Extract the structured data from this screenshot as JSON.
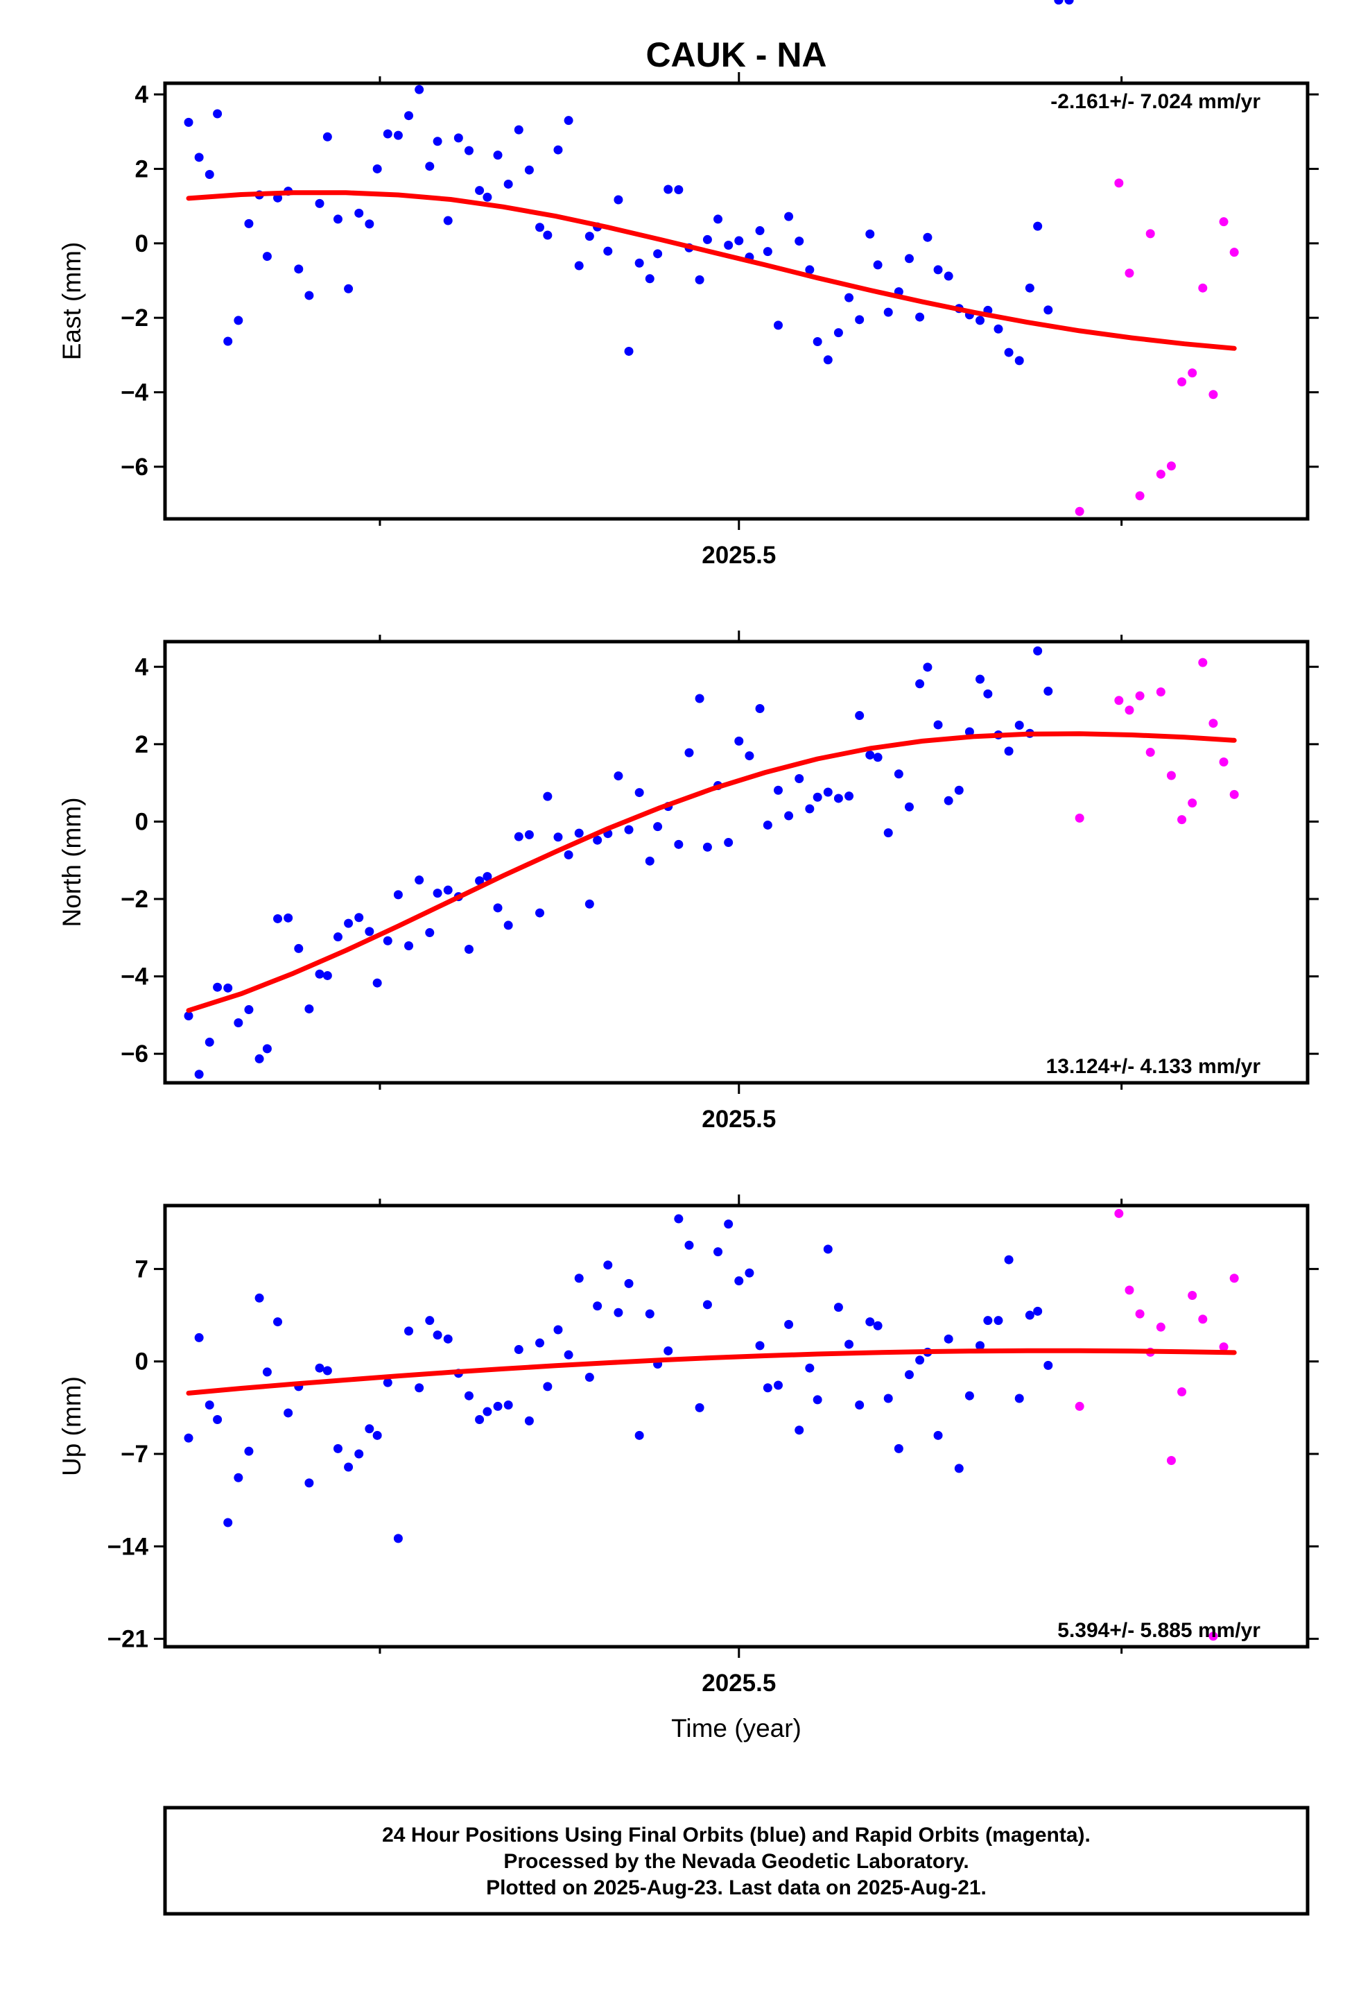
{
  "title": "CAUK - NA",
  "x_axis_label": "Time (year)",
  "footer": {
    "line1": "24 Hour Positions Using Final Orbits (blue) and Rapid Orbits (magenta).",
    "line2": "Processed by the Nevada Geodetic Laboratory.",
    "line3": "Plotted on 2025-Aug-23. Last data on 2025-Aug-21."
  },
  "colors": {
    "final": "#0000ff",
    "rapid": "#ff00ff",
    "fit": "#ff0000",
    "frame": "#000000"
  },
  "chart_data": [
    {
      "type": "scatter",
      "component": "east",
      "ylabel": "East (mm)",
      "rate_label": "-2.161+/- 7.024 mm/yr",
      "rate_position": "top-right",
      "xlim": [
        2025.281,
        2025.717
      ],
      "ylim": [
        -7.4,
        4.3
      ],
      "yticks": [
        -6,
        -4,
        -2,
        0,
        2,
        4
      ],
      "xticks": [
        2025.5
      ],
      "xticks_minor": [
        2025.363,
        2025.646
      ],
      "xtick_labels": [
        "2025.5"
      ],
      "grid": false,
      "final_x": [
        2025.29,
        2025.294,
        2025.298,
        2025.301,
        2025.305,
        2025.309,
        2025.313,
        2025.317,
        2025.32,
        2025.324,
        2025.328,
        2025.332,
        2025.336,
        2025.34,
        2025.343,
        2025.347,
        2025.351,
        2025.355,
        2025.359,
        2025.362,
        2025.366,
        2025.37,
        2025.374,
        2025.378,
        2025.382,
        2025.385,
        2025.389,
        2025.393,
        2025.397,
        2025.401,
        2025.404,
        2025.408,
        2025.412,
        2025.416,
        2025.42,
        2025.424,
        2025.427,
        2025.431,
        2025.435,
        2025.439,
        2025.443,
        2025.446,
        2025.45,
        2025.454,
        2025.458,
        2025.462,
        2025.466,
        2025.469,
        2025.473,
        2025.477,
        2025.481,
        2025.485,
        2025.488,
        2025.492,
        2025.496,
        2025.5,
        2025.504,
        2025.508,
        2025.511,
        2025.515,
        2025.519,
        2025.523,
        2025.527,
        2025.53,
        2025.534,
        2025.538,
        2025.542,
        2025.546,
        2025.55,
        2025.553,
        2025.557,
        2025.561,
        2025.565,
        2025.569,
        2025.572,
        2025.576,
        2025.58,
        2025.584,
        2025.588,
        2025.592,
        2025.595,
        2025.599,
        2025.603,
        2025.607,
        2025.611,
        2025.614,
        2025.618,
        2025.622,
        2025.626
      ],
      "final_y": [
        3.25,
        2.31,
        1.85,
        3.48,
        -2.63,
        -2.07,
        0.53,
        1.3,
        -0.35,
        1.22,
        1.4,
        -0.69,
        -1.4,
        1.07,
        2.86,
        0.65,
        -1.22,
        0.81,
        0.52,
        2.0,
        2.94,
        2.9,
        3.43,
        4.13,
        2.07,
        2.74,
        0.61,
        2.83,
        2.49,
        1.42,
        1.24,
        2.37,
        1.59,
        3.05,
        1.97,
        0.43,
        0.22,
        2.51,
        3.3,
        -0.6,
        0.19,
        0.44,
        -0.21,
        1.17,
        -2.9,
        -0.53,
        -0.95,
        -0.28,
        1.45,
        1.44,
        -0.12,
        -0.98,
        0.1,
        0.65,
        -0.05,
        0.07,
        -0.37,
        0.34,
        -0.22,
        -2.2,
        0.72,
        0.06,
        -0.71,
        -2.64,
        -3.13,
        -2.4,
        -1.46,
        -2.05,
        0.25,
        -0.58,
        -1.85,
        -1.3,
        -0.41,
        -1.98,
        0.16,
        -0.71,
        -0.88,
        -1.75,
        -1.92,
        -2.07,
        -1.8,
        -2.3,
        -2.93,
        -3.15,
        -1.2,
        0.46,
        -1.79
      ],
      "rapid_x": [
        2025.63,
        2025.645,
        2025.649,
        2025.653,
        2025.657,
        2025.661,
        2025.665,
        2025.669,
        2025.673,
        2025.677,
        2025.681,
        2025.685
      ],
      "rapid_y": [
        -7.2,
        1.62,
        -0.8,
        -6.78,
        0.26,
        -6.2,
        -5.98,
        -3.72,
        -3.48,
        -1.2,
        -4.06,
        0.58
      ],
      "rapid_extra": {
        "x": 2025.689,
        "y": -0.24
      },
      "fit_x": [
        2025.29,
        2025.31,
        2025.33,
        2025.35,
        2025.37,
        2025.39,
        2025.41,
        2025.43,
        2025.45,
        2025.47,
        2025.49,
        2025.51,
        2025.53,
        2025.55,
        2025.57,
        2025.59,
        2025.61,
        2025.63,
        2025.65,
        2025.67,
        2025.689
      ],
      "fit_y": [
        1.21,
        1.31,
        1.36,
        1.36,
        1.3,
        1.18,
        0.98,
        0.73,
        0.43,
        0.1,
        -0.24,
        -0.58,
        -0.93,
        -1.26,
        -1.57,
        -1.86,
        -2.12,
        -2.35,
        -2.54,
        -2.7,
        -2.82
      ]
    },
    {
      "type": "scatter",
      "component": "north",
      "ylabel": "North (mm)",
      "rate_label": "13.124+/- 4.133 mm/yr",
      "rate_position": "bottom-right",
      "xlim": [
        2025.281,
        2025.717
      ],
      "ylim": [
        -6.75,
        4.65
      ],
      "yticks": [
        -6,
        -4,
        -2,
        0,
        2,
        4
      ],
      "xticks": [
        2025.5
      ],
      "xticks_minor": [
        2025.363,
        2025.646
      ],
      "xtick_labels": [
        "2025.5"
      ],
      "grid": false,
      "final_x": [
        2025.29,
        2025.294,
        2025.298,
        2025.301,
        2025.305,
        2025.309,
        2025.313,
        2025.317,
        2025.32,
        2025.324,
        2025.328,
        2025.332,
        2025.336,
        2025.34,
        2025.343,
        2025.347,
        2025.351,
        2025.355,
        2025.359,
        2025.362,
        2025.366,
        2025.37,
        2025.374,
        2025.378,
        2025.382,
        2025.385,
        2025.389,
        2025.393,
        2025.397,
        2025.401,
        2025.404,
        2025.408,
        2025.412,
        2025.416,
        2025.42,
        2025.424,
        2025.427,
        2025.431,
        2025.435,
        2025.439,
        2025.443,
        2025.446,
        2025.45,
        2025.454,
        2025.458,
        2025.462,
        2025.466,
        2025.469,
        2025.473,
        2025.477,
        2025.481,
        2025.485,
        2025.488,
        2025.492,
        2025.496,
        2025.5,
        2025.504,
        2025.508,
        2025.511,
        2025.515,
        2025.519,
        2025.523,
        2025.527,
        2025.53,
        2025.534,
        2025.538,
        2025.542,
        2025.546,
        2025.55,
        2025.553,
        2025.557,
        2025.561,
        2025.565,
        2025.569,
        2025.572,
        2025.576,
        2025.58,
        2025.584,
        2025.588,
        2025.592,
        2025.595,
        2025.599,
        2025.603,
        2025.607,
        2025.611,
        2025.614,
        2025.618,
        2025.622,
        2025.626
      ],
      "final_y": [
        -5.02,
        -6.53,
        -5.7,
        -4.28,
        -4.3,
        -5.2,
        -4.86,
        -6.13,
        -5.87,
        -2.51,
        -2.49,
        -3.28,
        -4.84,
        -3.94,
        -3.98,
        -2.98,
        -2.63,
        -2.48,
        -2.84,
        -4.17,
        -3.08,
        -1.89,
        -3.21,
        -1.51,
        -2.87,
        -1.85,
        -1.77,
        -1.94,
        -3.3,
        -1.53,
        -1.42,
        -2.23,
        -2.68,
        -0.39,
        -0.34,
        -2.36,
        0.65,
        -0.4,
        -0.86,
        -0.3,
        -2.13,
        -0.48,
        -0.31,
        1.18,
        -0.21,
        0.75,
        -1.02,
        -0.13,
        0.39,
        -0.59,
        1.78,
        3.18,
        -0.66,
        0.93,
        -0.54,
        2.08,
        1.7,
        2.92,
        -0.09,
        0.81,
        0.15,
        1.11,
        0.33,
        0.63,
        0.76,
        0.6,
        0.66,
        2.74,
        1.72,
        1.66,
        -0.29,
        1.23,
        0.38,
        3.56,
        3.99,
        2.5,
        0.54,
        0.81,
        2.32,
        3.68,
        3.3,
        2.24,
        1.82,
        2.49,
        2.28,
        4.41,
        3.37
      ],
      "rapid_x": [
        2025.63,
        2025.645,
        2025.649,
        2025.653,
        2025.657,
        2025.661,
        2025.665,
        2025.669,
        2025.673,
        2025.677,
        2025.681,
        2025.685
      ],
      "rapid_y": [
        0.09,
        3.13,
        2.88,
        3.25,
        1.79,
        3.35,
        1.19,
        0.05,
        0.48,
        4.11,
        2.54,
        1.54
      ],
      "rapid_extra": {
        "x": 2025.689,
        "y": 0.7
      },
      "fit_x": [
        2025.29,
        2025.31,
        2025.33,
        2025.35,
        2025.37,
        2025.39,
        2025.41,
        2025.43,
        2025.45,
        2025.47,
        2025.49,
        2025.51,
        2025.53,
        2025.55,
        2025.57,
        2025.59,
        2025.61,
        2025.63,
        2025.65,
        2025.67,
        2025.689
      ],
      "fit_y": [
        -4.88,
        -4.45,
        -3.92,
        -3.33,
        -2.7,
        -2.05,
        -1.4,
        -0.78,
        -0.18,
        0.36,
        0.85,
        1.27,
        1.62,
        1.89,
        2.08,
        2.2,
        2.26,
        2.27,
        2.24,
        2.18,
        2.1
      ]
    },
    {
      "type": "scatter",
      "component": "up",
      "ylabel": "Up (mm)",
      "rate_label": "5.394+/- 5.885 mm/yr",
      "rate_position": "bottom-right",
      "xlim": [
        2025.281,
        2025.717
      ],
      "ylim": [
        -21.6,
        11.8
      ],
      "yticks": [
        -21,
        -14,
        -7,
        0,
        7
      ],
      "xticks": [
        2025.5
      ],
      "xticks_minor": [
        2025.363,
        2025.646
      ],
      "xtick_labels": [
        "2025.5"
      ],
      "grid": false,
      "final_x": [
        2025.29,
        2025.294,
        2025.298,
        2025.301,
        2025.305,
        2025.309,
        2025.313,
        2025.317,
        2025.32,
        2025.324,
        2025.328,
        2025.332,
        2025.336,
        2025.34,
        2025.343,
        2025.347,
        2025.351,
        2025.355,
        2025.359,
        2025.362,
        2025.366,
        2025.37,
        2025.374,
        2025.378,
        2025.382,
        2025.385,
        2025.389,
        2025.393,
        2025.397,
        2025.401,
        2025.404,
        2025.408,
        2025.412,
        2025.416,
        2025.42,
        2025.424,
        2025.427,
        2025.431,
        2025.435,
        2025.439,
        2025.443,
        2025.446,
        2025.45,
        2025.454,
        2025.458,
        2025.462,
        2025.466,
        2025.469,
        2025.473,
        2025.477,
        2025.481,
        2025.485,
        2025.488,
        2025.492,
        2025.496,
        2025.5,
        2025.504,
        2025.508,
        2025.511,
        2025.515,
        2025.519,
        2025.523,
        2025.527,
        2025.53,
        2025.534,
        2025.538,
        2025.542,
        2025.546,
        2025.55,
        2025.553,
        2025.557,
        2025.561,
        2025.565,
        2025.569,
        2025.572,
        2025.576,
        2025.58,
        2025.584,
        2025.588,
        2025.592,
        2025.595,
        2025.599,
        2025.603,
        2025.607,
        2025.611,
        2025.614,
        2025.618,
        2025.622,
        2025.626
      ],
      "final_y": [
        -5.8,
        1.8,
        -3.3,
        -4.4,
        -12.2,
        -8.8,
        -6.8,
        4.8,
        -0.8,
        3.0,
        -3.9,
        -1.9,
        -9.2,
        -0.5,
        -0.7,
        -6.6,
        -8.0,
        -7.0,
        -5.1,
        -5.6,
        -1.6,
        -13.4,
        2.3,
        -2.0,
        3.1,
        2.0,
        1.7,
        -0.9,
        -2.6,
        -4.4,
        -3.8,
        -3.4,
        -3.3,
        0.9,
        -4.5,
        1.4,
        -1.9,
        2.4,
        0.5,
        6.3,
        -1.2,
        4.2,
        7.3,
        3.7,
        5.9,
        -5.6,
        3.6,
        -0.2,
        0.8,
        10.8,
        8.8,
        -3.5,
        4.3,
        8.3,
        10.4,
        6.1,
        6.7,
        1.2,
        -2.0,
        -1.8,
        2.8,
        -5.2,
        -0.5,
        -2.9,
        8.5,
        4.1,
        1.3,
        -3.3,
        3.0,
        2.7,
        -2.8,
        -6.6,
        -1.0,
        0.1,
        0.7,
        -5.6,
        1.7,
        -8.1,
        -2.6,
        1.2,
        3.1,
        3.1,
        7.7,
        -2.8,
        3.5,
        3.8,
        -0.3
      ],
      "rapid_x": [
        2025.63,
        2025.645,
        2025.649,
        2025.653,
        2025.657,
        2025.661,
        2025.665,
        2025.669,
        2025.673,
        2025.677,
        2025.681,
        2025.685
      ],
      "rapid_y": [
        -3.4,
        11.2,
        5.4,
        3.6,
        0.7,
        2.6,
        -7.5,
        -2.3,
        5.0,
        3.2,
        -20.8,
        1.1
      ],
      "rapid_extra": {
        "x": 2025.689,
        "y": 6.3
      },
      "fit_x": [
        2025.29,
        2025.31,
        2025.33,
        2025.35,
        2025.37,
        2025.39,
        2025.41,
        2025.43,
        2025.45,
        2025.47,
        2025.49,
        2025.51,
        2025.53,
        2025.55,
        2025.57,
        2025.59,
        2025.61,
        2025.63,
        2025.65,
        2025.67,
        2025.689
      ],
      "fit_y": [
        -2.4,
        -2.04,
        -1.71,
        -1.4,
        -1.1,
        -0.82,
        -0.56,
        -0.32,
        -0.1,
        0.1,
        0.28,
        0.43,
        0.56,
        0.66,
        0.74,
        0.79,
        0.81,
        0.81,
        0.78,
        0.73,
        0.67
      ]
    }
  ]
}
